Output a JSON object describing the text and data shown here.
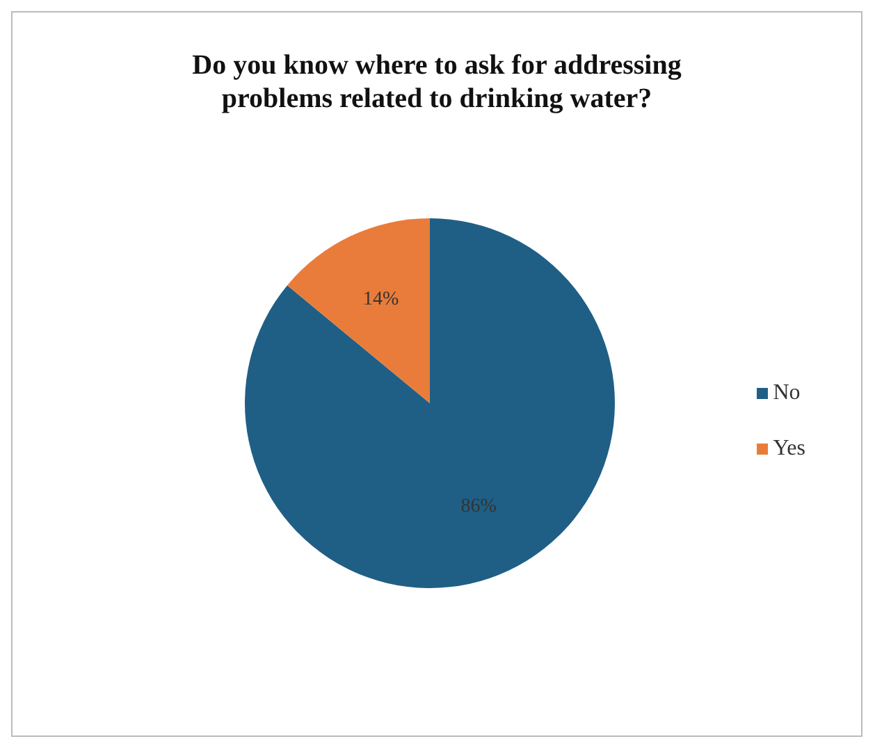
{
  "chart_data": {
    "type": "pie",
    "title": "Do you know where to ask for addressing problems related to drinking water?",
    "categories": [
      "No",
      "Yes"
    ],
    "values": [
      86,
      14
    ],
    "colors": [
      "#1f5f86",
      "#e97c3a"
    ],
    "value_labels": [
      "86%",
      "14%"
    ],
    "legend": "right"
  }
}
